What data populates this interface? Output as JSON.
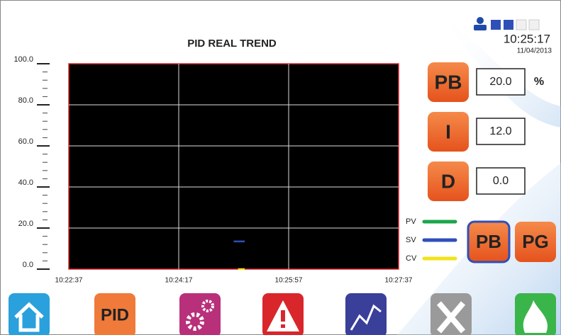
{
  "chart_data": {
    "type": "line",
    "title": "PID REAL TREND",
    "series": [
      {
        "name": "PV",
        "color": "#1aa64a",
        "x": [],
        "values": []
      },
      {
        "name": "SV",
        "color": "#2f4fb8",
        "x": [
          "10:25:07",
          "10:25:17"
        ],
        "values": [
          13.5,
          13.5
        ]
      },
      {
        "name": "CV",
        "color": "#f2e21a",
        "x": [
          "10:25:11",
          "10:25:17"
        ],
        "values": [
          0,
          0
        ]
      }
    ],
    "xlim": [
      "10:22:37",
      "10:27:37"
    ],
    "xticks": [
      "10:22:37",
      "10:24:17",
      "10:25:57",
      "10:27:37"
    ],
    "ylim": [
      0,
      100
    ],
    "yticks": [
      {
        "value": 0,
        "label": "0.0"
      },
      {
        "value": 20,
        "label": "20.0"
      },
      {
        "value": 40,
        "label": "40.0"
      },
      {
        "value": 60,
        "label": "60.0"
      },
      {
        "value": 80,
        "label": "80.0"
      },
      {
        "value": 100,
        "label": "100.0"
      }
    ],
    "grid": true
  },
  "clock": {
    "time": "10:25:17",
    "date": "11/04/2013"
  },
  "params": [
    {
      "label": "PB",
      "value": "20.0",
      "unit": "%"
    },
    {
      "label": "I",
      "value": "12.0"
    },
    {
      "label": "D",
      "value": "0.0"
    }
  ],
  "buttons": [
    "PB",
    "PG"
  ],
  "nav": {
    "pid": "PID"
  }
}
